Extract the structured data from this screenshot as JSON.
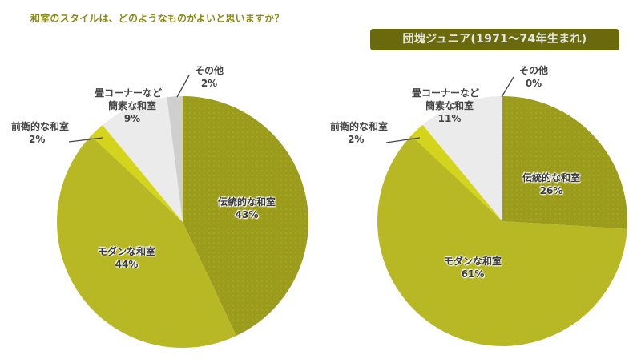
{
  "question": "和室のスタイルは、どのようなものがよいと思いますか？",
  "colors": {
    "traditional": "#9c9c1c",
    "modern": "#b7b824",
    "avant_garde": "#d4d41c",
    "simple": "#ebebeb",
    "other": "#cfcfcf",
    "title_text": "#8a8a18",
    "banner_bg": "#6a6a0c"
  },
  "chart_data": [
    {
      "type": "pie",
      "title": "和室のスタイルは、どのようなものがよいと思いますか？",
      "start": "12 o'clock, clockwise",
      "categories": [
        "伝統的な和室",
        "モダンな和室",
        "前衛的な和室",
        "畳コーナーなど簡素な和室",
        "その他"
      ],
      "values": [
        43,
        44,
        2,
        9,
        2
      ],
      "unit": "%"
    },
    {
      "type": "pie",
      "title": "団塊ジュニア(1971～74年生まれ)",
      "start": "12 o'clock, clockwise",
      "categories": [
        "伝統的な和室",
        "モダンな和室",
        "前衛的な和室",
        "畳コーナーなど簡素な和室",
        "その他"
      ],
      "values": [
        26,
        61,
        2,
        11,
        0
      ],
      "unit": "%"
    }
  ],
  "left": {
    "labels": {
      "traditional": {
        "name": "伝統的な和室",
        "pct": "43%"
      },
      "modern": {
        "name": "モダンな和室",
        "pct": "44%"
      },
      "avant_garde": {
        "name": "前衛的な和室",
        "pct": "2%"
      },
      "simple": {
        "name1": "畳コーナーなど",
        "name2": "簡素な和室",
        "pct": "9%"
      },
      "other": {
        "name": "その他",
        "pct": "2%"
      }
    }
  },
  "right": {
    "banner": "団塊ジュニア(1971～74年生まれ)",
    "labels": {
      "traditional": {
        "name": "伝統的な和室",
        "pct": "26%"
      },
      "modern": {
        "name": "モダンな和室",
        "pct": "61%"
      },
      "avant_garde": {
        "name": "前衛的な和室",
        "pct": "2%"
      },
      "simple": {
        "name1": "畳コーナーなど",
        "name2": "簡素な和室",
        "pct": "11%"
      },
      "other": {
        "name": "その他",
        "pct": "0%"
      }
    }
  }
}
